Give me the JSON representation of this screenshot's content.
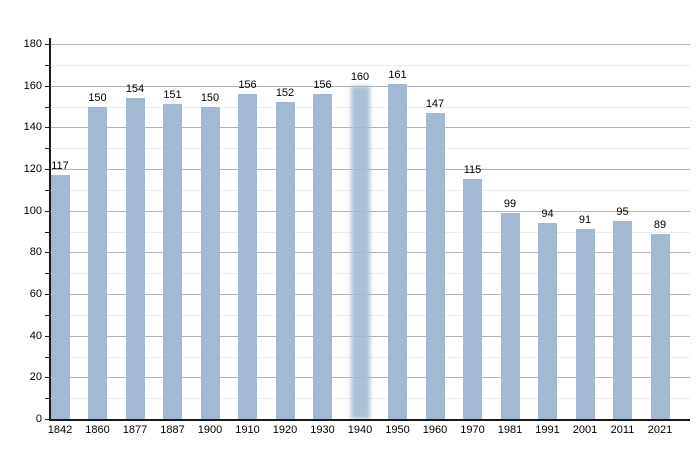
{
  "chart_data": {
    "type": "bar",
    "title": "",
    "xlabel": "",
    "ylabel": "",
    "categories": [
      "1842",
      "1860",
      "1877",
      "1887",
      "1900",
      "1910",
      "1920",
      "1930",
      "1940",
      "1950",
      "1960",
      "1970",
      "1981",
      "1991",
      "2001",
      "2011",
      "2021"
    ],
    "values": [
      117,
      150,
      154,
      151,
      150,
      156,
      152,
      156,
      160,
      161,
      147,
      115,
      99,
      94,
      91,
      95,
      89
    ],
    "value_labels": [
      "117",
      "150",
      "154",
      "151",
      "150",
      "156",
      "152",
      "156",
      "160",
      "161",
      "147",
      "115",
      "99",
      "94",
      "91",
      "95",
      "89"
    ],
    "ylim": [
      0,
      180
    ],
    "ytick_label_step": 20,
    "ytick_minor_step": 10,
    "y_tick_labels": [
      "0",
      "20",
      "40",
      "60",
      "80",
      "100",
      "120",
      "140",
      "160",
      "180"
    ],
    "grid": "on",
    "legend_position": "none",
    "faded_bar_category": "1940",
    "colors": {
      "bar": "#a2b9d1",
      "axis": "#1a1a1a",
      "major_gridline": "#b3b3b3",
      "minor_gridline": "#ececec",
      "label": "#000000",
      "background": "#ffffff"
    }
  }
}
